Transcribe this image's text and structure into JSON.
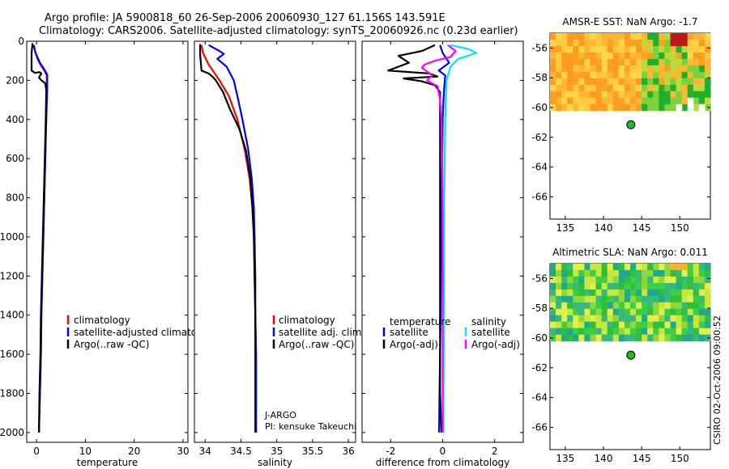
{
  "header": {
    "line1": "Argo profile: JA 5900818_60 26-Sep-2006 20060930_127 61.156S 143.591E",
    "line2": "Climatology: CARS2006. Satellite-adjusted climatology: synTS_20060926.nc (0.23d earlier)"
  },
  "side_label": "CSIRO 02-Oct-2006 09:00:52",
  "colors": {
    "climatology": "#ff0000",
    "satellite": "#0000ff",
    "argo": "#000000",
    "salinity_satellite": "#00e5ff",
    "salinity_argo": "#ff00ff",
    "float_marker": "#22bb22"
  },
  "chart_data": [
    {
      "type": "line",
      "xlabel": "temperature",
      "ylabel": "",
      "xlim": [
        -2,
        31
      ],
      "ylim": [
        2050,
        0
      ],
      "xticks": [
        0,
        10,
        20,
        30
      ],
      "yticks": [
        0,
        200,
        400,
        600,
        800,
        1000,
        1200,
        1400,
        1600,
        1800,
        2000
      ],
      "legend": {
        "placement": "bottom-right",
        "entries": [
          "climatology",
          "satellite-adjusted climatology",
          "Argo(..raw -QC)"
        ]
      },
      "series": [
        {
          "name": "climatology",
          "points": [
            [
              -0.5,
              20
            ],
            [
              -0.3,
              50
            ],
            [
              0.2,
              90
            ],
            [
              0.8,
              120
            ],
            [
              1.6,
              150
            ],
            [
              2.1,
              175
            ],
            [
              2.1,
              250
            ],
            [
              2.0,
              400
            ],
            [
              1.8,
              600
            ],
            [
              1.6,
              800
            ],
            [
              1.4,
              1000
            ],
            [
              1.2,
              1200
            ],
            [
              1.0,
              1400
            ],
            [
              0.9,
              1600
            ],
            [
              0.7,
              1800
            ],
            [
              0.5,
              2000
            ]
          ]
        },
        {
          "name": "satellite-adjusted climatology",
          "points": [
            [
              -0.6,
              20
            ],
            [
              -0.2,
              60
            ],
            [
              0.7,
              110
            ],
            [
              1.5,
              140
            ],
            [
              2.2,
              170
            ],
            [
              2.2,
              250
            ],
            [
              2.0,
              400
            ],
            [
              1.8,
              600
            ],
            [
              1.6,
              800
            ],
            [
              1.4,
              1000
            ],
            [
              1.2,
              1200
            ],
            [
              1.0,
              1400
            ],
            [
              0.9,
              1600
            ],
            [
              0.7,
              1800
            ],
            [
              0.5,
              2000
            ]
          ]
        },
        {
          "name": "Argo(..raw -QC)",
          "points": [
            [
              -0.8,
              10
            ],
            [
              -1.0,
              60
            ],
            [
              -1.0,
              150
            ],
            [
              -0.3,
              162
            ],
            [
              0.6,
              158
            ],
            [
              1.0,
              165
            ],
            [
              0.5,
              185
            ],
            [
              1.0,
              200
            ],
            [
              1.8,
              215
            ],
            [
              2.0,
              250
            ],
            [
              1.9,
              400
            ],
            [
              1.7,
              600
            ],
            [
              1.5,
              800
            ],
            [
              1.3,
              1000
            ],
            [
              1.1,
              1200
            ],
            [
              0.9,
              1400
            ],
            [
              0.8,
              1600
            ],
            [
              0.6,
              1800
            ],
            [
              0.5,
              2000
            ]
          ]
        }
      ]
    },
    {
      "type": "line",
      "xlabel": "salinity",
      "ylabel": "",
      "xlim": [
        33.85,
        36.1
      ],
      "ylim": [
        2050,
        0
      ],
      "xticks": [
        34,
        34.5,
        35,
        35.5,
        36
      ],
      "xtick_labels": [
        "34",
        "34.5",
        "35",
        "35.5",
        "36"
      ],
      "legend": {
        "placement": "bottom-right",
        "entries": [
          "climatology",
          "satellite adj. clim.",
          "Argo(..raw -QC)"
        ]
      },
      "annotations": [
        "J-ARGO",
        "PI: kensuke Takeuchi"
      ],
      "series": [
        {
          "name": "climatology",
          "points": [
            [
              33.95,
              20
            ],
            [
              33.97,
              60
            ],
            [
              34.05,
              120
            ],
            [
              34.2,
              200
            ],
            [
              34.33,
              280
            ],
            [
              34.45,
              400
            ],
            [
              34.55,
              550
            ],
            [
              34.62,
              700
            ],
            [
              34.66,
              850
            ],
            [
              34.68,
              1000
            ],
            [
              34.69,
              1200
            ],
            [
              34.7,
              1400
            ],
            [
              34.71,
              1600
            ],
            [
              34.71,
              1800
            ],
            [
              34.71,
              2000
            ]
          ]
        },
        {
          "name": "satellite adj. clim.",
          "points": [
            [
              34.05,
              20
            ],
            [
              34.2,
              50
            ],
            [
              34.26,
              65
            ],
            [
              34.17,
              90
            ],
            [
              34.3,
              130
            ],
            [
              34.4,
              200
            ],
            [
              34.45,
              280
            ],
            [
              34.52,
              400
            ],
            [
              34.6,
              550
            ],
            [
              34.65,
              700
            ],
            [
              34.68,
              850
            ],
            [
              34.69,
              1000
            ],
            [
              34.7,
              1200
            ],
            [
              34.7,
              1400
            ],
            [
              34.71,
              1600
            ],
            [
              34.71,
              1800
            ],
            [
              34.71,
              2000
            ]
          ]
        },
        {
          "name": "Argo(..raw -QC)",
          "points": [
            [
              33.93,
              15
            ],
            [
              33.93,
              70
            ],
            [
              33.95,
              150
            ],
            [
              34.05,
              165
            ],
            [
              34.1,
              180
            ],
            [
              34.15,
              200
            ],
            [
              34.25,
              260
            ],
            [
              34.35,
              350
            ],
            [
              34.48,
              450
            ],
            [
              34.57,
              560
            ],
            [
              34.63,
              700
            ],
            [
              34.66,
              850
            ],
            [
              34.68,
              1000
            ],
            [
              34.69,
              1200
            ],
            [
              34.7,
              1400
            ],
            [
              34.7,
              1600
            ],
            [
              34.7,
              1800
            ],
            [
              34.7,
              2000
            ]
          ]
        }
      ]
    },
    {
      "type": "line",
      "xlabel": "difference from climatology",
      "ylabel": "",
      "xlim": [
        -3.1,
        3.1
      ],
      "ylim": [
        2050,
        0
      ],
      "xticks": [
        -2,
        0,
        2
      ],
      "legend": {
        "placement": "bottom",
        "entries": [
          "temperature",
          "satellite",
          "Argo(-adj)",
          "salinity",
          "satellite",
          "Argo(-adj)"
        ]
      },
      "series": [
        {
          "name": "temperature satellite",
          "points": [
            [
              -0.1,
              20
            ],
            [
              0.0,
              60
            ],
            [
              0.25,
              110
            ],
            [
              -0.15,
              150
            ],
            [
              0.1,
              175
            ],
            [
              0.05,
              250
            ],
            [
              0.0,
              400
            ],
            [
              -0.02,
              600
            ],
            [
              -0.04,
              800
            ],
            [
              -0.05,
              1000
            ],
            [
              -0.07,
              1200
            ],
            [
              -0.08,
              1400
            ],
            [
              -0.1,
              1600
            ],
            [
              -0.12,
              1800
            ],
            [
              -0.14,
              2000
            ]
          ]
        },
        {
          "name": "temperature Argo(-adj)",
          "points": [
            [
              -0.3,
              20
            ],
            [
              -0.8,
              50
            ],
            [
              -1.7,
              75
            ],
            [
              -1.3,
              110
            ],
            [
              -2.1,
              150
            ],
            [
              -0.5,
              165
            ],
            [
              -0.2,
              180
            ],
            [
              -1.5,
              190
            ],
            [
              -0.8,
              205
            ],
            [
              -0.3,
              225
            ],
            [
              -0.1,
              260
            ],
            [
              -0.1,
              400
            ],
            [
              -0.1,
              600
            ],
            [
              -0.1,
              800
            ],
            [
              -0.1,
              1000
            ],
            [
              -0.1,
              1200
            ],
            [
              -0.1,
              1400
            ],
            [
              -0.1,
              1600
            ],
            [
              -0.1,
              1800
            ],
            [
              -0.05,
              2000
            ]
          ]
        },
        {
          "name": "salinity satellite",
          "points": [
            [
              0.3,
              20
            ],
            [
              1.0,
              40
            ],
            [
              1.3,
              60
            ],
            [
              0.6,
              90
            ],
            [
              0.3,
              130
            ],
            [
              0.15,
              200
            ],
            [
              0.12,
              300
            ],
            [
              0.1,
              400
            ],
            [
              0.08,
              600
            ],
            [
              0.06,
              800
            ],
            [
              0.05,
              1000
            ],
            [
              0.05,
              1200
            ],
            [
              0.04,
              1400
            ],
            [
              0.04,
              1600
            ],
            [
              0.03,
              1800
            ],
            [
              0.03,
              2000
            ]
          ]
        },
        {
          "name": "salinity Argo(-adj)",
          "points": [
            [
              0.2,
              20
            ],
            [
              0.5,
              50
            ],
            [
              0.3,
              80
            ],
            [
              -0.3,
              100
            ],
            [
              -0.7,
              120
            ],
            [
              -0.8,
              135
            ],
            [
              -0.4,
              175
            ],
            [
              -0.6,
              200
            ],
            [
              -0.2,
              230
            ],
            [
              -0.1,
              300
            ],
            [
              -0.05,
              400
            ],
            [
              -0.02,
              600
            ],
            [
              -0.01,
              800
            ],
            [
              0.0,
              1000
            ],
            [
              0.0,
              1200
            ],
            [
              0.0,
              1400
            ],
            [
              0.0,
              1600
            ],
            [
              0.0,
              1800
            ],
            [
              0.0,
              2000
            ]
          ]
        }
      ]
    },
    {
      "type": "heatmap",
      "title": "AMSR-E SST: NaN Argo: -1.7",
      "xlim": [
        133,
        154
      ],
      "ylim": [
        -67.5,
        -55
      ],
      "xticks": [
        135,
        140,
        145,
        150
      ],
      "yticks": [
        -56,
        -58,
        -60,
        -62,
        -64,
        -66
      ],
      "coverage_lat": [
        -60.2,
        -55
      ],
      "float_position": [
        143.591,
        -61.156
      ]
    },
    {
      "type": "heatmap",
      "title": "Altimetric SLA: NaN Argo: 0.011",
      "xlim": [
        133,
        154
      ],
      "ylim": [
        -67.5,
        -55
      ],
      "xticks": [
        135,
        140,
        145,
        150
      ],
      "yticks": [
        -56,
        -58,
        -60,
        -62,
        -64,
        -66
      ],
      "coverage_lat": [
        -60.2,
        -55
      ],
      "float_position": [
        143.591,
        -61.156
      ]
    }
  ]
}
